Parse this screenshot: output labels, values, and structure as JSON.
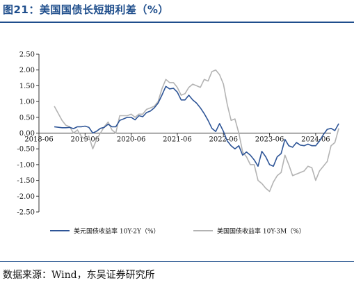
{
  "figure": {
    "title": "图21：美国国债长短期利差（%）",
    "source": "数据来源：Wind，东吴证券研究所"
  },
  "chart_data": {
    "type": "line",
    "xlabel": "",
    "ylabel": "",
    "x_ticks": [
      "2018-06",
      "2019-06",
      "2020-06",
      "2021-06",
      "2022-06",
      "2023-06",
      "2024-06"
    ],
    "y_ticks": [
      "2.50",
      "2.00",
      "1.50",
      "1.00",
      "0.50",
      "0.00",
      "-0.50",
      "-1.00",
      "-1.50",
      "-2.00",
      "-2.50"
    ],
    "ylim": [
      -2.5,
      2.5
    ],
    "xlim": [
      "2018-06",
      "2024-10"
    ],
    "grid": false,
    "legend_position": "bottom",
    "series": [
      {
        "name": "美元国债收益率 10Y-2Y（%）",
        "color": "#2e5597",
        "points": [
          [
            "2018-10",
            0.2
          ],
          [
            "2018-12",
            0.17
          ],
          [
            "2019-01",
            0.17
          ],
          [
            "2019-02",
            0.18
          ],
          [
            "2019-03",
            0.14
          ],
          [
            "2019-04",
            0.2
          ],
          [
            "2019-05",
            0.2
          ],
          [
            "2019-06",
            0.22
          ],
          [
            "2019-07",
            0.18
          ],
          [
            "2019-08",
            0.0
          ],
          [
            "2019-09",
            0.06
          ],
          [
            "2019-10",
            0.15
          ],
          [
            "2019-11",
            0.18
          ],
          [
            "2019-12",
            0.28
          ],
          [
            "2020-01",
            0.2
          ],
          [
            "2020-02",
            0.2
          ],
          [
            "2020-03",
            0.4
          ],
          [
            "2020-04",
            0.45
          ],
          [
            "2020-05",
            0.5
          ],
          [
            "2020-06",
            0.5
          ],
          [
            "2020-07",
            0.42
          ],
          [
            "2020-08",
            0.55
          ],
          [
            "2020-09",
            0.52
          ],
          [
            "2020-10",
            0.65
          ],
          [
            "2020-11",
            0.7
          ],
          [
            "2020-12",
            0.8
          ],
          [
            "2021-01",
            0.95
          ],
          [
            "2021-02",
            1.2
          ],
          [
            "2021-03",
            1.48
          ],
          [
            "2021-04",
            1.4
          ],
          [
            "2021-05",
            1.42
          ],
          [
            "2021-06",
            1.3
          ],
          [
            "2021-07",
            1.05
          ],
          [
            "2021-08",
            1.05
          ],
          [
            "2021-09",
            1.2
          ],
          [
            "2021-10",
            1.05
          ],
          [
            "2021-11",
            0.95
          ],
          [
            "2021-12",
            0.8
          ],
          [
            "2022-01",
            0.62
          ],
          [
            "2022-02",
            0.4
          ],
          [
            "2022-03",
            0.15
          ],
          [
            "2022-04",
            0.05
          ],
          [
            "2022-05",
            0.3
          ],
          [
            "2022-06",
            0.05
          ],
          [
            "2022-07",
            -0.25
          ],
          [
            "2022-08",
            -0.4
          ],
          [
            "2022-09",
            -0.5
          ],
          [
            "2022-10",
            -0.4
          ],
          [
            "2022-11",
            -0.7
          ],
          [
            "2022-12",
            -0.6
          ],
          [
            "2023-01",
            -0.7
          ],
          [
            "2023-02",
            -0.85
          ],
          [
            "2023-03",
            -1.05
          ],
          [
            "2023-04",
            -0.58
          ],
          [
            "2023-05",
            -0.75
          ],
          [
            "2023-06",
            -1.0
          ],
          [
            "2023-07",
            -1.05
          ],
          [
            "2023-08",
            -0.75
          ],
          [
            "2023-09",
            -0.65
          ],
          [
            "2023-10",
            -0.2
          ],
          [
            "2023-11",
            -0.4
          ],
          [
            "2023-12",
            -0.45
          ],
          [
            "2024-01",
            -0.3
          ],
          [
            "2024-02",
            -0.38
          ],
          [
            "2024-03",
            -0.4
          ],
          [
            "2024-04",
            -0.35
          ],
          [
            "2024-05",
            -0.4
          ],
          [
            "2024-06",
            -0.4
          ],
          [
            "2024-07",
            -0.25
          ],
          [
            "2024-08",
            -0.05
          ],
          [
            "2024-09",
            0.12
          ],
          [
            "2024-10",
            0.15
          ],
          [
            "2024-11",
            0.08
          ],
          [
            "2024-12",
            0.3
          ]
        ]
      },
      {
        "name": "美国国债收益率 10Y-3M（%）",
        "color": "#b3b3b3",
        "points": [
          [
            "2018-10",
            0.85
          ],
          [
            "2018-12",
            0.4
          ],
          [
            "2019-01",
            0.25
          ],
          [
            "2019-02",
            0.2
          ],
          [
            "2019-03",
            0.0
          ],
          [
            "2019-04",
            0.1
          ],
          [
            "2019-05",
            -0.1
          ],
          [
            "2019-06",
            -0.2
          ],
          [
            "2019-07",
            -0.1
          ],
          [
            "2019-08",
            -0.5
          ],
          [
            "2019-09",
            -0.2
          ],
          [
            "2019-10",
            0.0
          ],
          [
            "2019-11",
            0.2
          ],
          [
            "2019-12",
            0.35
          ],
          [
            "2020-01",
            0.1
          ],
          [
            "2020-02",
            0.0
          ],
          [
            "2020-03",
            0.55
          ],
          [
            "2020-04",
            0.55
          ],
          [
            "2020-05",
            0.55
          ],
          [
            "2020-06",
            0.6
          ],
          [
            "2020-07",
            0.5
          ],
          [
            "2020-08",
            0.6
          ],
          [
            "2020-09",
            0.6
          ],
          [
            "2020-10",
            0.75
          ],
          [
            "2020-11",
            0.8
          ],
          [
            "2020-12",
            0.85
          ],
          [
            "2021-01",
            1.0
          ],
          [
            "2021-02",
            1.4
          ],
          [
            "2021-03",
            1.7
          ],
          [
            "2021-04",
            1.6
          ],
          [
            "2021-05",
            1.6
          ],
          [
            "2021-06",
            1.45
          ],
          [
            "2021-07",
            1.2
          ],
          [
            "2021-08",
            1.25
          ],
          [
            "2021-09",
            1.45
          ],
          [
            "2021-10",
            1.55
          ],
          [
            "2021-11",
            1.5
          ],
          [
            "2021-12",
            1.45
          ],
          [
            "2022-01",
            1.7
          ],
          [
            "2022-02",
            1.65
          ],
          [
            "2022-03",
            1.95
          ],
          [
            "2022-04",
            2.0
          ],
          [
            "2022-05",
            1.85
          ],
          [
            "2022-06",
            1.55
          ],
          [
            "2022-07",
            0.9
          ],
          [
            "2022-08",
            0.4
          ],
          [
            "2022-09",
            0.45
          ],
          [
            "2022-10",
            0.0
          ],
          [
            "2022-11",
            -0.6
          ],
          [
            "2022-12",
            -0.75
          ],
          [
            "2023-01",
            -1.0
          ],
          [
            "2023-02",
            -1.0
          ],
          [
            "2023-03",
            -1.5
          ],
          [
            "2023-04",
            -1.6
          ],
          [
            "2023-05",
            -1.75
          ],
          [
            "2023-06",
            -1.85
          ],
          [
            "2023-07",
            -1.55
          ],
          [
            "2023-08",
            -1.35
          ],
          [
            "2023-09",
            -1.25
          ],
          [
            "2023-10",
            -0.7
          ],
          [
            "2023-11",
            -1.0
          ],
          [
            "2023-12",
            -1.35
          ],
          [
            "2024-01",
            -1.3
          ],
          [
            "2024-02",
            -1.25
          ],
          [
            "2024-03",
            -1.2
          ],
          [
            "2024-04",
            -1.05
          ],
          [
            "2024-05",
            -1.1
          ],
          [
            "2024-06",
            -1.5
          ],
          [
            "2024-07",
            -1.2
          ],
          [
            "2024-08",
            -1.05
          ],
          [
            "2024-09",
            -0.9
          ],
          [
            "2024-10",
            -0.4
          ],
          [
            "2024-11",
            -0.3
          ],
          [
            "2024-12",
            0.15
          ]
        ]
      }
    ]
  }
}
